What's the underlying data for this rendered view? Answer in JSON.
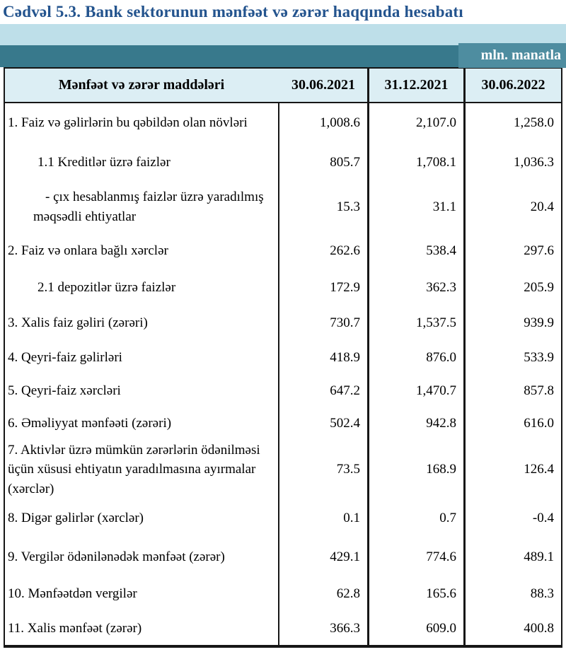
{
  "page": {
    "title": "Cədvəl 5.3. Bank sektorunun mənfəət və zərər haqqında hesabatı",
    "unit_label": "mln. manatla"
  },
  "colors": {
    "title_blue": "#24548E",
    "band_light_blue": "#BEDFE9",
    "band_teal": "#38798C",
    "band_teal_light": "#4E8DA0",
    "header_row_bg": "#DCEEF4",
    "table_border": "#161616"
  },
  "table": {
    "headers": {
      "items_col": "Mənfəət və zərər maddələri",
      "col1": "30.06.2021",
      "col2": "31.12.2021",
      "col3": "30.06.2022"
    },
    "rows": [
      {
        "label": "1. Faiz və gəlirlərin bu qəbildən olan növləri",
        "values": [
          "1,008.6",
          "2,107.0",
          "1,258.0"
        ]
      },
      {
        "label": "1.1 Kreditlər üzrə faizlər",
        "values": [
          "805.7",
          "1,708.1",
          "1,036.3"
        ]
      },
      {
        "label": "-  çıx hesablanmış faizlər üzrə yaradılmış məqsədli ehtiyatlar",
        "values": [
          "15.3",
          "31.1",
          "20.4"
        ]
      },
      {
        "label": "2. Faiz və onlara bağlı xərclər",
        "values": [
          "262.6",
          "538.4",
          "297.6"
        ]
      },
      {
        "label": "2.1 depozitlər üzrə faizlər",
        "values": [
          "172.9",
          "362.3",
          "205.9"
        ]
      },
      {
        "label": "3. Xalis faiz gəliri (zərəri)",
        "values": [
          "730.7",
          "1,537.5",
          "939.9"
        ]
      },
      {
        "label": "4. Qeyri-faiz gəlirləri",
        "values": [
          "418.9",
          "876.0",
          "533.9"
        ]
      },
      {
        "label": "5. Qeyri-faiz xərcləri",
        "values": [
          "647.2",
          "1,470.7",
          "857.8"
        ]
      },
      {
        "label": "6. Əməliyyat mənfəəti (zərəri)",
        "values": [
          "502.4",
          "942.8",
          "616.0"
        ]
      },
      {
        "label": "7. Aktivlər üzrə mümkün zərərlərin ödənilməsi üçün xüsusi ehtiyatın yaradılmasına ayırmalar (xərclər)",
        "values": [
          "73.5",
          "168.9",
          "126.4"
        ]
      },
      {
        "label": "8. Digər gəlirlər (xərclər)",
        "values": [
          "0.1",
          "0.7",
          "-0.4"
        ]
      },
      {
        "label": "9. Vergilər ödənilənədək mənfəət (zərər)",
        "values": [
          "429.1",
          "774.6",
          "489.1"
        ]
      },
      {
        "label": "10. Mənfəətdən vergilər",
        "values": [
          "62.8",
          "165.6",
          "88.3"
        ]
      },
      {
        "label": "11. Xalis mənfəət (zərər)",
        "values": [
          "366.3",
          "609.0",
          "400.8"
        ]
      }
    ]
  }
}
